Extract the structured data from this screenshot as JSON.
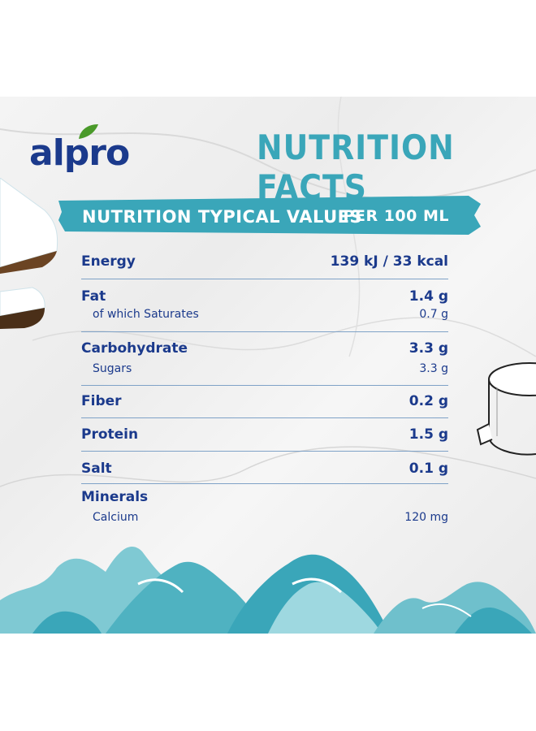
{
  "brand": {
    "logo_text": "alpro",
    "color": "#1b3a8c",
    "leaf_color": "#4a9a2a"
  },
  "heading": {
    "title": "NUTRITION FACTS",
    "color": "#3aa6b9"
  },
  "table_header": {
    "left": "NUTRITION TYPICAL VALUES",
    "right": "PER 100 ML",
    "banner_color": "#3aa6b9"
  },
  "rows": [
    {
      "label": "Energy",
      "value": "139 kJ / 33 kcal"
    },
    {
      "label": "Fat",
      "value": "1.4 g",
      "sub_label": "of which Saturates",
      "sub_value": "0.7 g"
    },
    {
      "label": "Carbohydrate",
      "value": "3.3 g",
      "sub_label": "Sugars",
      "sub_value": "3.3 g"
    },
    {
      "label": "Fiber",
      "value": "0.2 g"
    },
    {
      "label": "Protein",
      "value": "1.5 g"
    },
    {
      "label": "Salt",
      "value": "0.1 g"
    },
    {
      "label": "Minerals",
      "value": "",
      "sub_label": "Calcium",
      "sub_value": "120 mg"
    }
  ],
  "decorations": [
    "coconut-pieces-illustration",
    "mug-icon",
    "marble-background",
    "teal-marble-waves"
  ]
}
